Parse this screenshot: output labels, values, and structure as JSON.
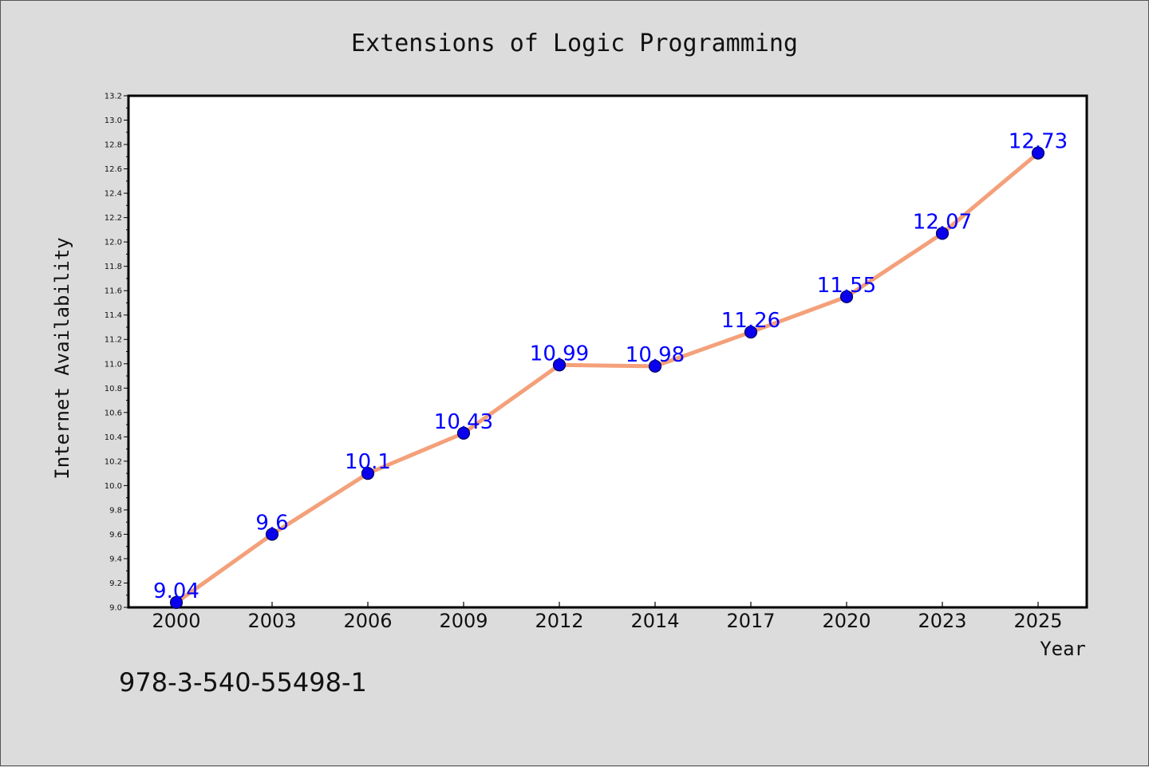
{
  "chart_data": {
    "type": "line",
    "title": "Extensions of Logic Programming",
    "xlabel": "Year",
    "ylabel": "Internet Availability",
    "categories": [
      "2000",
      "2003",
      "2006",
      "2009",
      "2012",
      "2014",
      "2017",
      "2020",
      "2023",
      "2025"
    ],
    "series": [
      {
        "values": [
          9.04,
          9.6,
          10.1,
          10.43,
          10.99,
          10.98,
          11.26,
          11.55,
          12.07,
          12.73
        ],
        "data_labels": [
          "9.04",
          "9.6",
          "10.1",
          "10.43",
          "10.99",
          "10.98",
          "11.26",
          "11.55",
          "12.07",
          "12.73"
        ]
      }
    ],
    "ylim": [
      9.0,
      13.2
    ],
    "yticks": [
      "9.0",
      "9.2",
      "9.4",
      "9.6",
      "9.8",
      "10.0",
      "10.2",
      "10.4",
      "10.6",
      "10.8",
      "11.0",
      "11.2",
      "11.4",
      "11.6",
      "11.8",
      "12.0",
      "12.2",
      "12.4",
      "12.6",
      "12.8",
      "13.0",
      "13.2"
    ],
    "grid": false,
    "legend": "none",
    "colors": {
      "line": "#f4a07a",
      "marker_fill": "#0a00ee",
      "marker_edge": "#00005a",
      "data_label": "#0000ff",
      "plot_background": "#ffffff",
      "figure_background": "#dcdcdc"
    }
  },
  "footer": {
    "isbn": "978-3-540-55498-1"
  }
}
